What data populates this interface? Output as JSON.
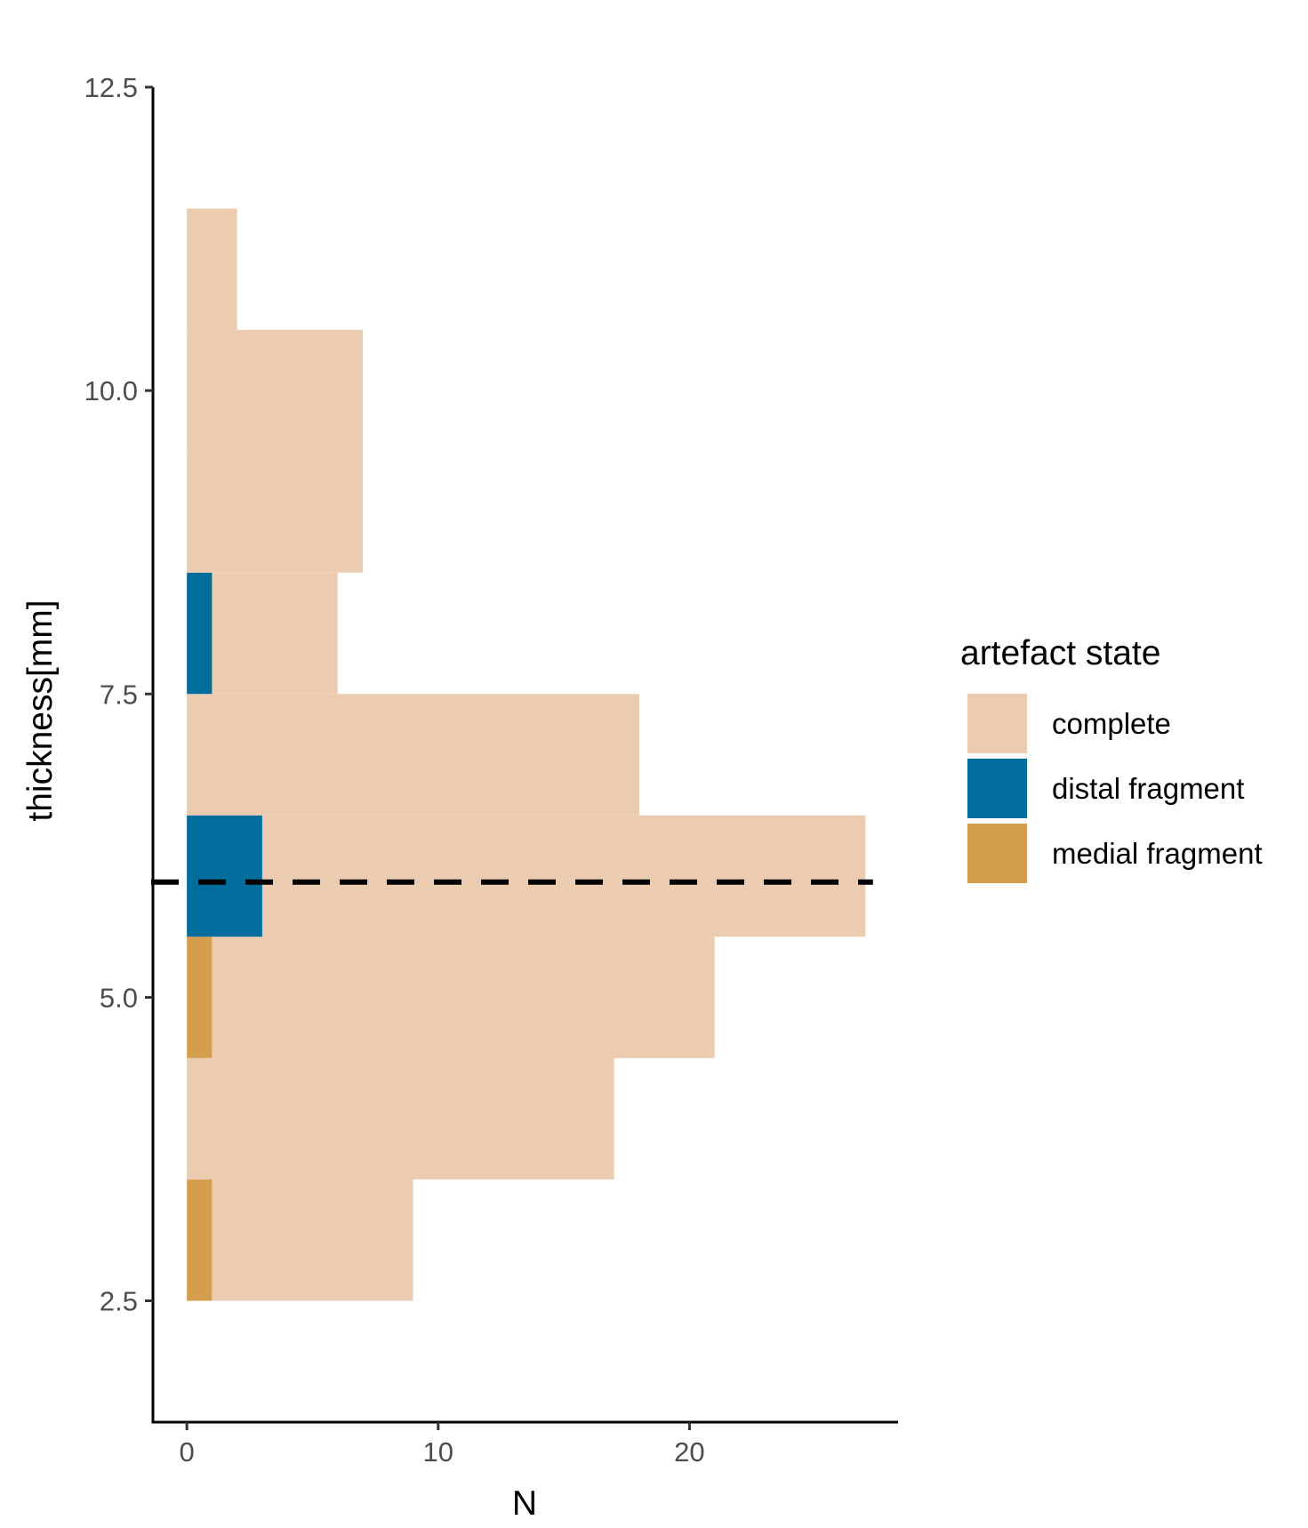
{
  "chart_data": {
    "type": "bar",
    "orientation": "horizontal",
    "stacked": true,
    "xlabel": "N",
    "ylabel": "thickness[mm]",
    "xlim": [
      -1.35,
      28.3
    ],
    "ylim": [
      1.5,
      12.5
    ],
    "x_ticks": [
      {
        "value": 0,
        "label": "0"
      },
      {
        "value": 10,
        "label": "10"
      },
      {
        "value": 20,
        "label": "20"
      }
    ],
    "y_ticks": [
      {
        "value": 2.5,
        "label": "2.5"
      },
      {
        "value": 5.0,
        "label": "5.0"
      },
      {
        "value": 7.5,
        "label": "7.5"
      },
      {
        "value": 10.0,
        "label": "10.0"
      },
      {
        "value": 12.5,
        "label": "12.5"
      }
    ],
    "grid": false,
    "bins": [
      {
        "from": 2.5,
        "to": 3.5
      },
      {
        "from": 3.5,
        "to": 4.5
      },
      {
        "from": 4.5,
        "to": 5.5
      },
      {
        "from": 5.5,
        "to": 6.5
      },
      {
        "from": 6.5,
        "to": 7.5
      },
      {
        "from": 7.5,
        "to": 8.5
      },
      {
        "from": 8.5,
        "to": 9.5
      },
      {
        "from": 9.5,
        "to": 10.5
      },
      {
        "from": 10.5,
        "to": 11.5
      }
    ],
    "series": [
      {
        "name": "distal fragment",
        "color": "#006d9c",
        "values": [
          0,
          0,
          0,
          3,
          0,
          1,
          0,
          0,
          0
        ]
      },
      {
        "name": "medial fragment",
        "color": "#d59e4f",
        "values": [
          1,
          0,
          1,
          0,
          0,
          0,
          0,
          0,
          0
        ]
      },
      {
        "name": "complete",
        "color": "#ecccb0",
        "values": [
          8,
          17,
          20,
          24,
          18,
          5,
          7,
          7,
          2
        ]
      }
    ],
    "reference_line": {
      "axis": "y",
      "value": 5.95,
      "style": "dashed",
      "color": "#000000"
    },
    "legend": {
      "title": "artefact state",
      "position": "right",
      "entries": [
        {
          "label": "complete",
          "color": "#ecccb0"
        },
        {
          "label": "distal fragment",
          "color": "#006d9c"
        },
        {
          "label": "medial fragment",
          "color": "#d59e4f"
        }
      ]
    }
  }
}
